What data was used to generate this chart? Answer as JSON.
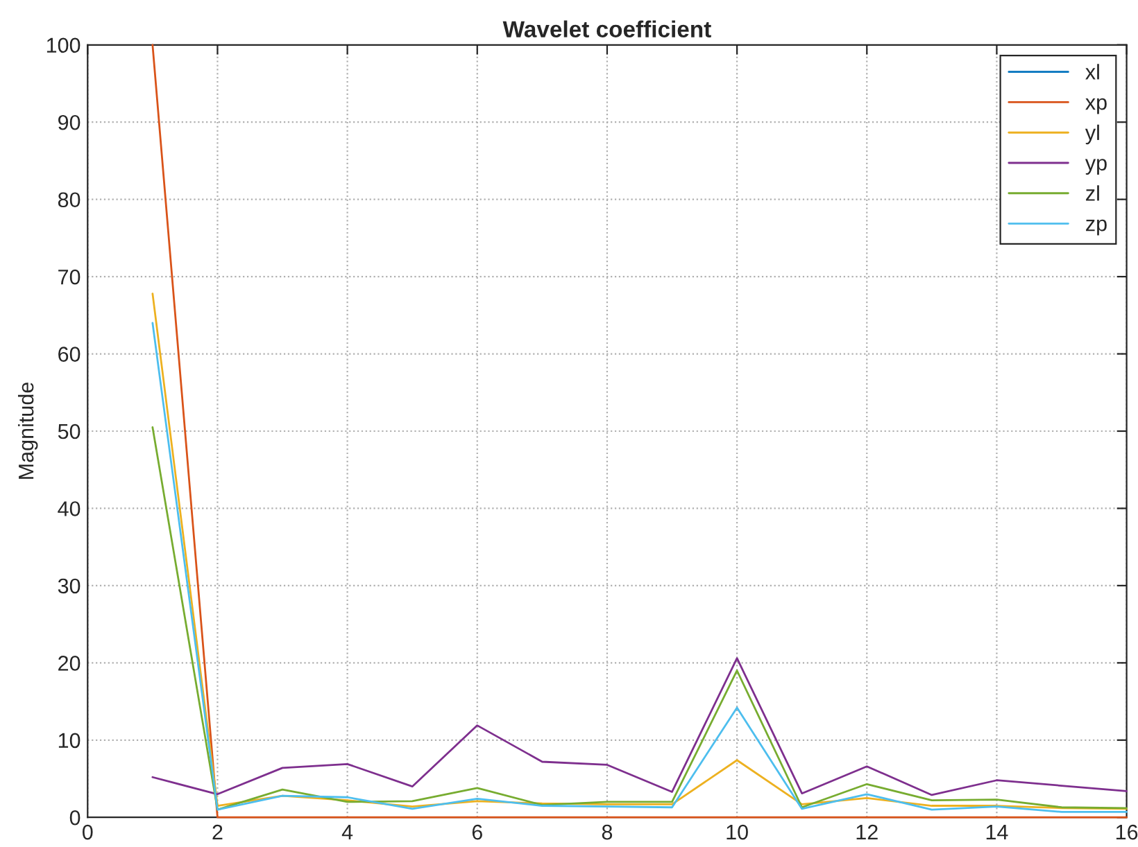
{
  "chart_data": {
    "type": "line",
    "title": "Wavelet coefficient",
    "ylabel": "Magnitude",
    "x": [
      1,
      2,
      3,
      4,
      5,
      6,
      7,
      8,
      9,
      10,
      11,
      12,
      13,
      14,
      15,
      16
    ],
    "series": [
      {
        "name": "xl",
        "color": "#0072bd",
        "values": [
          null,
          null,
          null,
          null,
          null,
          null,
          null,
          null,
          null,
          null,
          null,
          null,
          null,
          null,
          null,
          null
        ]
      },
      {
        "name": "xp",
        "color": "#d95319",
        "values": [
          100,
          0,
          0,
          0,
          0,
          0,
          0,
          0,
          0,
          0,
          0,
          0,
          0,
          0,
          0,
          0
        ]
      },
      {
        "name": "yl",
        "color": "#edb120",
        "values": [
          67.8,
          1.5,
          2.8,
          2.2,
          1.4,
          2.1,
          1.8,
          1.7,
          1.7,
          7.4,
          1.7,
          2.5,
          1.5,
          1.5,
          1.2,
          1.1
        ]
      },
      {
        "name": "yp",
        "color": "#7e2f8e",
        "values": [
          5.2,
          3.0,
          6.4,
          6.9,
          4.0,
          11.9,
          7.2,
          6.8,
          3.3,
          20.6,
          3.1,
          6.6,
          2.9,
          4.8,
          4.1,
          3.4
        ]
      },
      {
        "name": "zl",
        "color": "#77ac30",
        "values": [
          50.5,
          1.0,
          3.6,
          2.0,
          2.1,
          3.8,
          1.6,
          2.0,
          2.0,
          19.0,
          1.3,
          4.3,
          2.2,
          2.3,
          1.3,
          1.2
        ]
      },
      {
        "name": "zp",
        "color": "#4dbeee",
        "values": [
          64.0,
          1.0,
          2.8,
          2.6,
          1.1,
          2.4,
          1.5,
          1.4,
          1.3,
          14.2,
          1.1,
          3.0,
          1.0,
          1.4,
          0.7,
          0.7
        ]
      }
    ],
    "xlim": [
      0,
      16
    ],
    "xticks": [
      0,
      2,
      4,
      6,
      8,
      10,
      12,
      14,
      16
    ],
    "ylim": [
      0,
      100
    ],
    "yticks": [
      0,
      10,
      20,
      30,
      40,
      50,
      60,
      70,
      80,
      90,
      100
    ],
    "grid": true,
    "legend": "top right",
    "marker": "none",
    "line_style": "solid"
  }
}
